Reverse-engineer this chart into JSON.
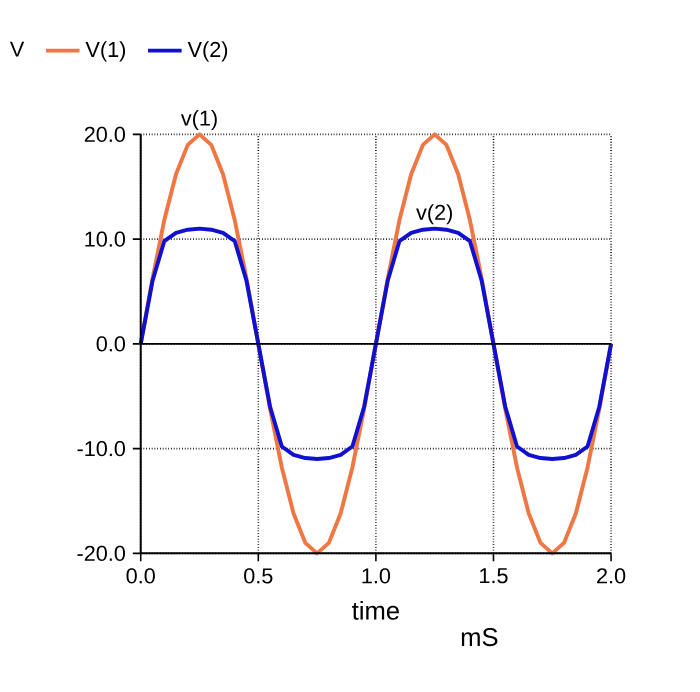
{
  "chart_data": {
    "type": "line",
    "xlabel": "time",
    "legend_title": "V",
    "legend": "top left",
    "grid": true,
    "line_style": "solid",
    "marker": "none",
    "x": [
      0,
      0.05,
      0.1,
      0.15,
      0.2,
      0.25,
      0.3,
      0.35,
      0.4,
      0.45,
      0.5,
      0.55,
      0.6,
      0.65,
      0.7,
      0.75,
      0.8,
      0.85,
      0.9,
      0.95,
      1.0,
      1.05,
      1.1,
      1.15,
      1.2,
      1.25,
      1.3,
      1.35,
      1.4,
      1.45,
      1.5,
      1.55,
      1.6,
      1.65,
      1.7,
      1.75,
      1.8,
      1.85,
      1.9,
      1.95,
      2.0
    ],
    "series": [
      {
        "name": "V(1)",
        "color": "#ee7744",
        "values": [
          0,
          6.2,
          11.8,
          16.2,
          19.0,
          20,
          19.0,
          16.2,
          11.8,
          6.2,
          0,
          -6.2,
          -11.8,
          -16.2,
          -19.0,
          -20,
          -19.0,
          -16.2,
          -11.8,
          -6.2,
          0,
          6.2,
          11.8,
          16.2,
          19.0,
          20,
          19.0,
          16.2,
          11.8,
          6.2,
          0,
          -6.2,
          -11.8,
          -16.2,
          -19.0,
          -20,
          -19.0,
          -16.2,
          -11.8,
          -6.2,
          0
        ]
      },
      {
        "name": "V(2)",
        "color": "#1010d0",
        "values": [
          0,
          6.0,
          9.8,
          10.6,
          10.9,
          11,
          10.9,
          10.6,
          9.8,
          6.0,
          0,
          -6.0,
          -9.8,
          -10.6,
          -10.9,
          -11,
          -10.9,
          -10.6,
          -9.8,
          -6.0,
          0,
          6.0,
          9.8,
          10.6,
          10.9,
          11,
          10.9,
          10.6,
          9.8,
          6.0,
          0,
          -6.0,
          -9.8,
          -10.6,
          -10.9,
          -11,
          -10.9,
          -10.6,
          -9.8,
          -6.0,
          0
        ]
      }
    ],
    "xlim": [
      0,
      2
    ],
    "ylim": [
      -20,
      20
    ],
    "xticks": [
      {
        "value": 0,
        "label": "0.0"
      },
      {
        "value": 0.5,
        "label": "0.5"
      },
      {
        "value": 1,
        "label": "1.0"
      },
      {
        "value": 1.5,
        "label": "1.5"
      },
      {
        "value": 2,
        "label": "2.0"
      }
    ],
    "yticks": [
      {
        "value": -20,
        "label": "-20.0"
      },
      {
        "value": -10,
        "label": "-10.0"
      },
      {
        "value": 0,
        "label": "0.0"
      },
      {
        "value": 10,
        "label": "10.0"
      },
      {
        "value": 20,
        "label": "20.0"
      }
    ],
    "ref_lines": [
      {
        "axis": "y",
        "value": 0
      }
    ],
    "annotations": [
      {
        "text": "v(1)",
        "x": 0.25,
        "y": 20
      },
      {
        "text": "v(2)",
        "x": 1.25,
        "y": 11
      },
      "mS"
    ]
  }
}
